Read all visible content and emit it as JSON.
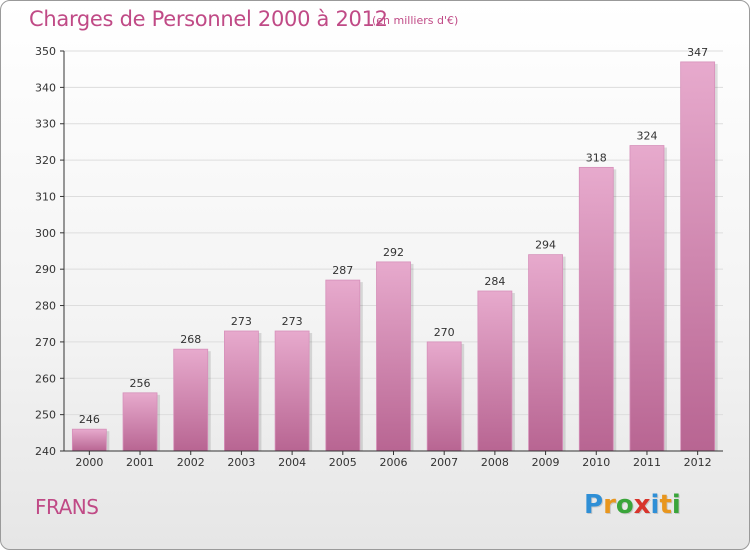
{
  "header": {
    "title": "Charges de Personnel 2000 à 2012",
    "unit": "(en milliers d'€)"
  },
  "footer": {
    "location": "FRANS",
    "logo_text": "Proxiti",
    "logo_letters": [
      {
        "ch": "P",
        "color": "#2f8fd6"
      },
      {
        "ch": "r",
        "color": "#e8961e"
      },
      {
        "ch": "o",
        "color": "#3aa53a"
      },
      {
        "ch": "x",
        "color": "#d8342c"
      },
      {
        "ch": "i",
        "color": "#2f8fd6"
      },
      {
        "ch": "t",
        "color": "#e8961e"
      },
      {
        "ch": "i",
        "color": "#3aa53a"
      }
    ]
  },
  "colors": {
    "bar_top": "#e7aacd",
    "bar_bottom": "#b86592",
    "text": "#c04a86",
    "axis": "#333333",
    "grid": "#dddddd"
  },
  "chart_data": {
    "type": "bar",
    "title": "Charges de Personnel 2000 à 2012",
    "subtitle": "(en milliers d'€)",
    "categories": [
      "2000",
      "2001",
      "2002",
      "2003",
      "2004",
      "2005",
      "2006",
      "2007",
      "2008",
      "2009",
      "2010",
      "2011",
      "2012"
    ],
    "values": [
      246,
      256,
      268,
      273,
      273,
      287,
      292,
      270,
      284,
      294,
      318,
      324,
      347
    ],
    "ylim": [
      240,
      350
    ],
    "yticks": [
      240,
      250,
      260,
      270,
      280,
      290,
      300,
      310,
      320,
      330,
      340,
      350
    ],
    "grid": true,
    "data_labels": true
  }
}
